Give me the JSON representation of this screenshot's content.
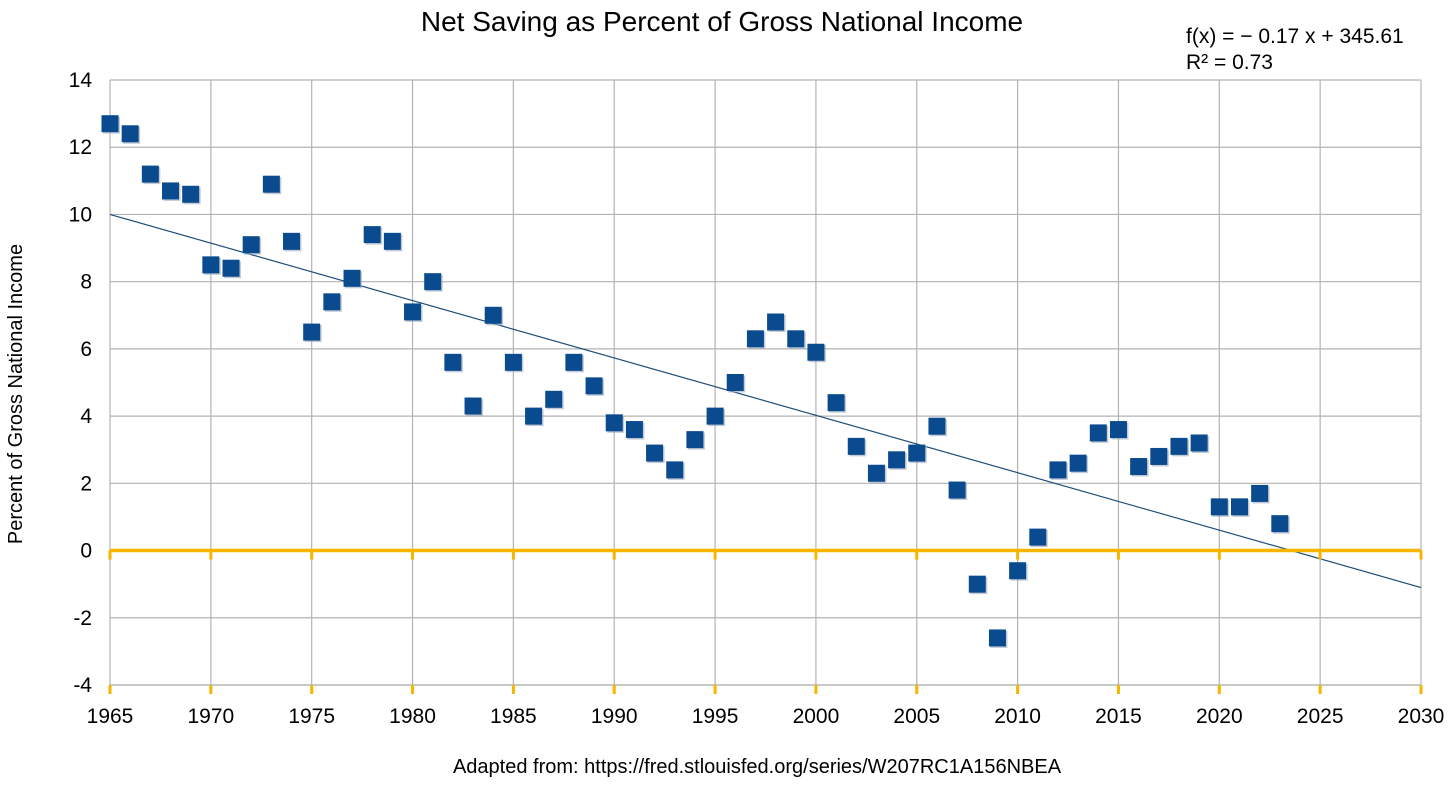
{
  "chart_data": {
    "type": "scatter",
    "title": "Net Saving as Percent of Gross National Income",
    "ylabel": "Percent of Gross National Income",
    "xlabel": "",
    "xlim": [
      1965,
      2030
    ],
    "ylim": [
      -4,
      14
    ],
    "x_ticks": [
      1965,
      1970,
      1975,
      1980,
      1985,
      1990,
      1995,
      2000,
      2005,
      2010,
      2015,
      2020,
      2025,
      2030
    ],
    "y_ticks": [
      -4,
      -2,
      0,
      2,
      4,
      6,
      8,
      10,
      12,
      14
    ],
    "grid": true,
    "zero_line": true,
    "trendline": {
      "equation": "f(x) = − 0.17 x + 345.61",
      "r_squared": "R² = 0.73",
      "slope": -0.17,
      "intercept": 345.61,
      "start_point": [
        1965,
        10.0
      ],
      "end_point": [
        2030,
        -1.1
      ]
    },
    "points": [
      [
        1965,
        12.7
      ],
      [
        1966,
        12.4
      ],
      [
        1967,
        11.2
      ],
      [
        1968,
        10.7
      ],
      [
        1969,
        10.6
      ],
      [
        1970,
        8.5
      ],
      [
        1971,
        8.4
      ],
      [
        1972,
        9.1
      ],
      [
        1973,
        10.9
      ],
      [
        1974,
        9.2
      ],
      [
        1975,
        6.5
      ],
      [
        1976,
        7.4
      ],
      [
        1977,
        8.1
      ],
      [
        1978,
        9.4
      ],
      [
        1979,
        9.2
      ],
      [
        1980,
        7.1
      ],
      [
        1981,
        8.0
      ],
      [
        1982,
        5.6
      ],
      [
        1983,
        4.3
      ],
      [
        1984,
        7.0
      ],
      [
        1985,
        5.6
      ],
      [
        1986,
        4.0
      ],
      [
        1987,
        4.5
      ],
      [
        1988,
        5.6
      ],
      [
        1989,
        4.9
      ],
      [
        1990,
        3.8
      ],
      [
        1991,
        3.6
      ],
      [
        1992,
        2.9
      ],
      [
        1993,
        2.4
      ],
      [
        1994,
        3.3
      ],
      [
        1995,
        4.0
      ],
      [
        1996,
        5.0
      ],
      [
        1997,
        6.3
      ],
      [
        1998,
        6.8
      ],
      [
        1999,
        6.3
      ],
      [
        2000,
        5.9
      ],
      [
        2001,
        4.4
      ],
      [
        2002,
        3.1
      ],
      [
        2003,
        2.3
      ],
      [
        2004,
        2.7
      ],
      [
        2005,
        2.9
      ],
      [
        2006,
        3.7
      ],
      [
        2007,
        1.8
      ],
      [
        2008,
        -1.0
      ],
      [
        2009,
        -2.6
      ],
      [
        2010,
        -0.6
      ],
      [
        2011,
        0.4
      ],
      [
        2012,
        2.4
      ],
      [
        2013,
        2.6
      ],
      [
        2014,
        3.5
      ],
      [
        2015,
        3.6
      ],
      [
        2016,
        2.5
      ],
      [
        2017,
        2.8
      ],
      [
        2018,
        3.1
      ],
      [
        2019,
        3.2
      ],
      [
        2020,
        1.3
      ],
      [
        2021,
        1.3
      ],
      [
        2022,
        1.7
      ],
      [
        2023,
        0.8
      ]
    ],
    "colors": {
      "marker": "#0a4a8f",
      "trendline": "#1f4e79",
      "zero_line": "#f7b500",
      "grid": "#b3b3b3"
    },
    "source": "Adapted from: https://fred.stlouisfed.org/series/W207RC1A156NBEA"
  }
}
